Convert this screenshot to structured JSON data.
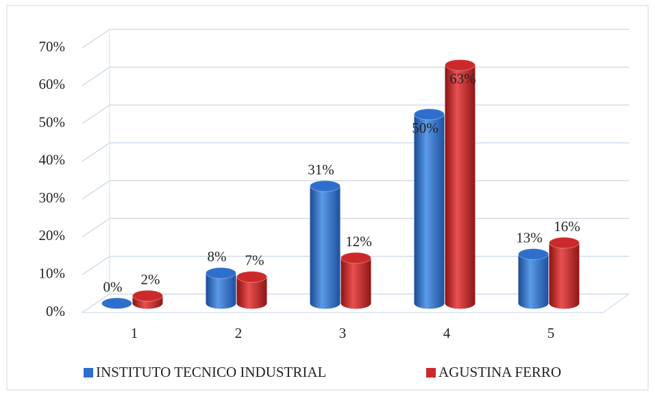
{
  "chart_data": {
    "type": "bar3d",
    "categories": [
      "1",
      "2",
      "3",
      "4",
      "5"
    ],
    "series": [
      {
        "name": "INSTITUTO TECNICO INDUSTRIAL",
        "color": "#2e6fcc",
        "values": [
          0,
          8,
          31,
          50,
          13
        ],
        "value_labels": [
          "0%",
          "8%",
          "31%",
          "50%",
          "13%"
        ]
      },
      {
        "name": "AGUSTINA FERRO",
        "color": "#cc2a2a",
        "values": [
          2,
          7,
          12,
          63,
          16
        ],
        "value_labels": [
          "2%",
          "7%",
          "12%",
          "63%",
          "16%"
        ]
      }
    ],
    "ylim": [
      0,
      70
    ],
    "yticks": [
      {
        "value": 0,
        "label": "0%"
      },
      {
        "value": 10,
        "label": "10%"
      },
      {
        "value": 20,
        "label": "20%"
      },
      {
        "value": 30,
        "label": "30%"
      },
      {
        "value": 40,
        "label": "40%"
      },
      {
        "value": 50,
        "label": "50%"
      },
      {
        "value": 60,
        "label": "60%"
      },
      {
        "value": 70,
        "label": "70%"
      }
    ],
    "grid": true,
    "legend": "bottom"
  }
}
